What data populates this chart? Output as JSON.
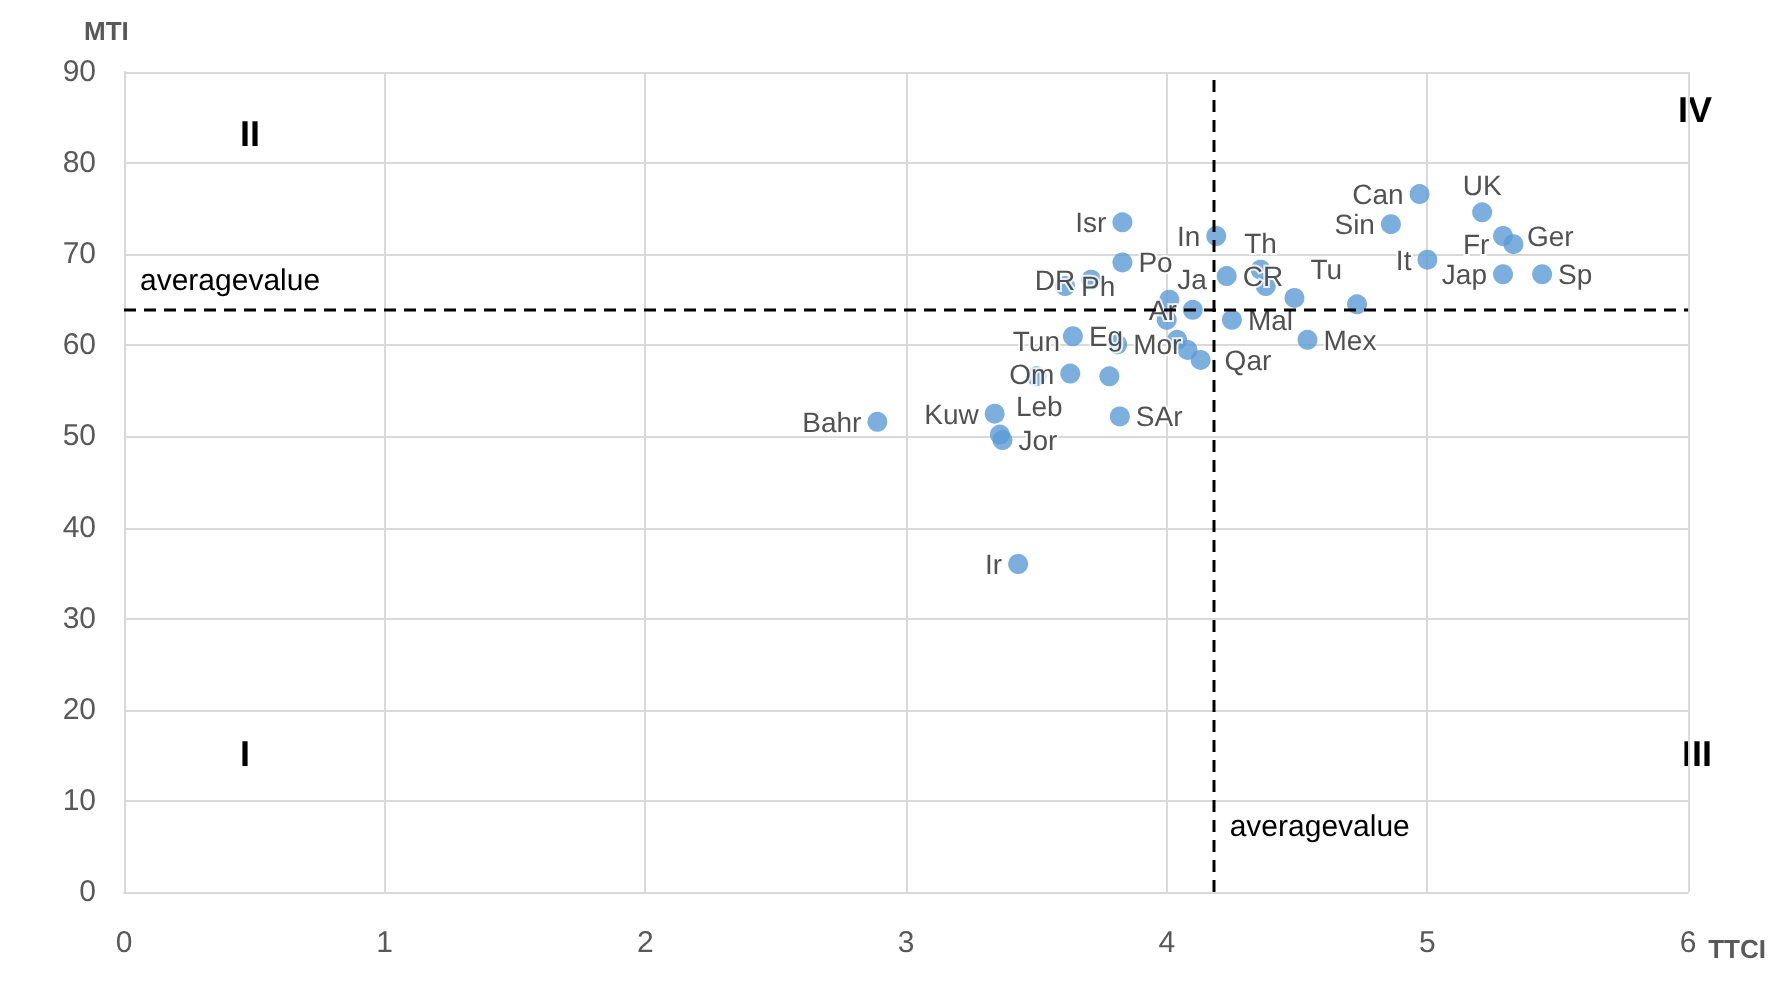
{
  "chart_data": {
    "type": "scatter",
    "xlabel": "TTCI",
    "ylabel": "MTI",
    "xlim": [
      0,
      6
    ],
    "xticks": [
      0,
      1,
      2,
      3,
      4,
      5,
      6
    ],
    "ylim": [
      0,
      90
    ],
    "yticks": [
      0,
      10,
      20,
      30,
      40,
      50,
      60,
      70,
      80,
      90
    ],
    "grid": true,
    "marker": "circle",
    "annotations": [
      "II",
      "IV",
      "I",
      "III"
    ],
    "ref_lines": [
      {
        "axis": "y",
        "value": 63.9,
        "label": "averagevalue",
        "color": "#000000",
        "line_style": "dashed"
      },
      {
        "axis": "x",
        "value": 4.18,
        "label": "averagevalue",
        "color": "#000000",
        "line_style": "dashed"
      }
    ],
    "series": [
      {
        "color": "#5b9bd5",
        "x": [
          2.89,
          3.34,
          3.37,
          3.36,
          3.43,
          3.5,
          3.64,
          3.63,
          3.82,
          3.83,
          3.71,
          3.61,
          3.83,
          3.81,
          4.01,
          4.1,
          4.13,
          4.25,
          4.19,
          4.23,
          4.36,
          4.49,
          4.54,
          4.86,
          4.97,
          5.0,
          5.21,
          5.29,
          5.33,
          5.29,
          5.44,
          3.78,
          4.38,
          4.73,
          4.04,
          4.08,
          4.0
        ],
        "values": [
          51.6,
          52.5,
          49.6,
          50.2,
          36,
          56.6,
          61,
          56.9,
          52.2,
          73.5,
          67.2,
          66.5,
          69.1,
          60.1,
          65,
          63.9,
          58.4,
          62.8,
          72,
          67.6,
          68.3,
          65.2,
          60.6,
          73.3,
          76.6,
          69.4,
          74.6,
          72,
          71.1,
          67.8,
          67.8,
          56.6,
          66.5,
          64.5,
          60.6,
          59.5,
          62.8
        ],
        "value_labels": [
          "Bahr",
          "Kuw",
          "Jor",
          "Leb",
          "Ir",
          "Tun",
          "Eg",
          "Om",
          "SAr",
          "Isr",
          "DR",
          "Ph",
          "Po",
          "Mor",
          "Ja",
          "Ar",
          "Qar",
          "Mal",
          "In",
          "CR",
          "Th",
          "Tu",
          "Mex",
          "Sin",
          "Can",
          "It",
          "UK",
          "Ger",
          "Fr",
          "Jap",
          "Sp",
          null,
          null,
          null,
          null,
          null,
          null
        ]
      }
    ]
  }
}
